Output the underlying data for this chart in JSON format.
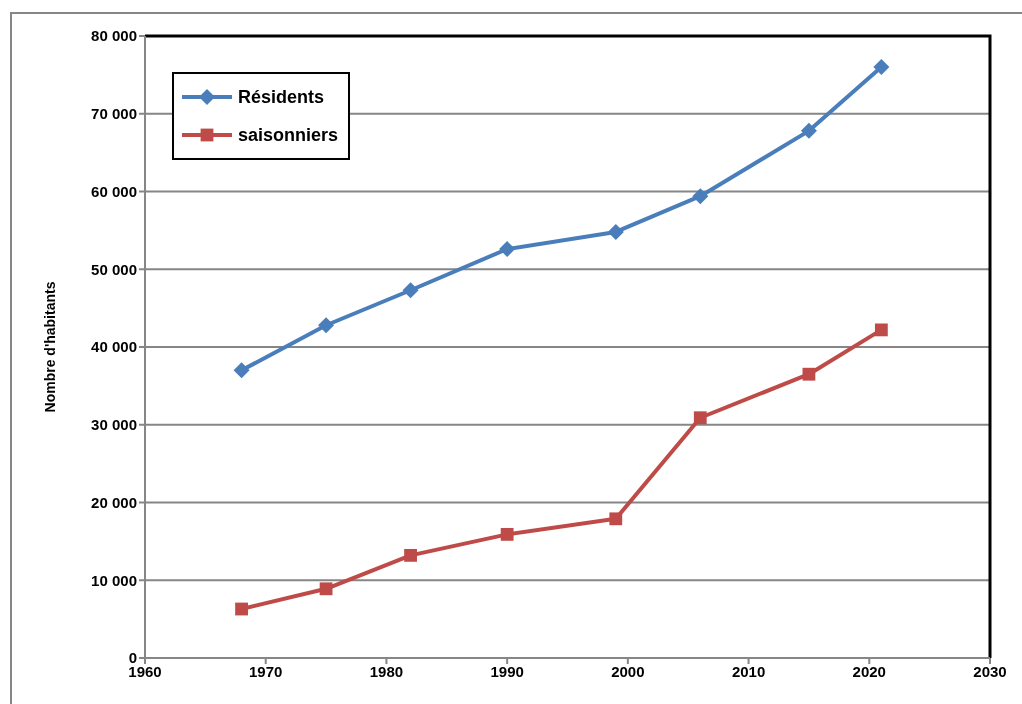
{
  "chart_data": {
    "type": "line",
    "ylabel": "Nombre d'habitants",
    "x": [
      1968,
      1975,
      1982,
      1990,
      1999,
      2006,
      2015,
      2021
    ],
    "series": [
      {
        "name": "Résidents",
        "color": "#4a7ebb",
        "marker": "diamond",
        "values": [
          37000,
          42800,
          47300,
          52600,
          54800,
          59400,
          67800,
          76000
        ]
      },
      {
        "name": "saisonniers",
        "color": "#be4b48",
        "marker": "square",
        "values": [
          6300,
          8900,
          13200,
          15900,
          17900,
          30900,
          36500,
          42200
        ]
      }
    ],
    "xlim": [
      1960,
      2030
    ],
    "xticks": [
      1960,
      1970,
      1980,
      1990,
      2000,
      2010,
      2020,
      2030
    ],
    "ylim": [
      0,
      80000
    ],
    "yticks": [
      0,
      {
        "value": 10000,
        "label": "10 000"
      },
      {
        "value": 20000,
        "label": "20 000"
      },
      {
        "value": 30000,
        "label": "30 000"
      },
      {
        "value": 40000,
        "label": "40 000"
      },
      {
        "value": 50000,
        "label": "50 000"
      },
      {
        "value": 60000,
        "label": "60 000"
      },
      {
        "value": 70000,
        "label": "70 000"
      },
      {
        "value": 80000,
        "label": "80 000"
      }
    ],
    "grid": "y",
    "legend": "top left"
  }
}
